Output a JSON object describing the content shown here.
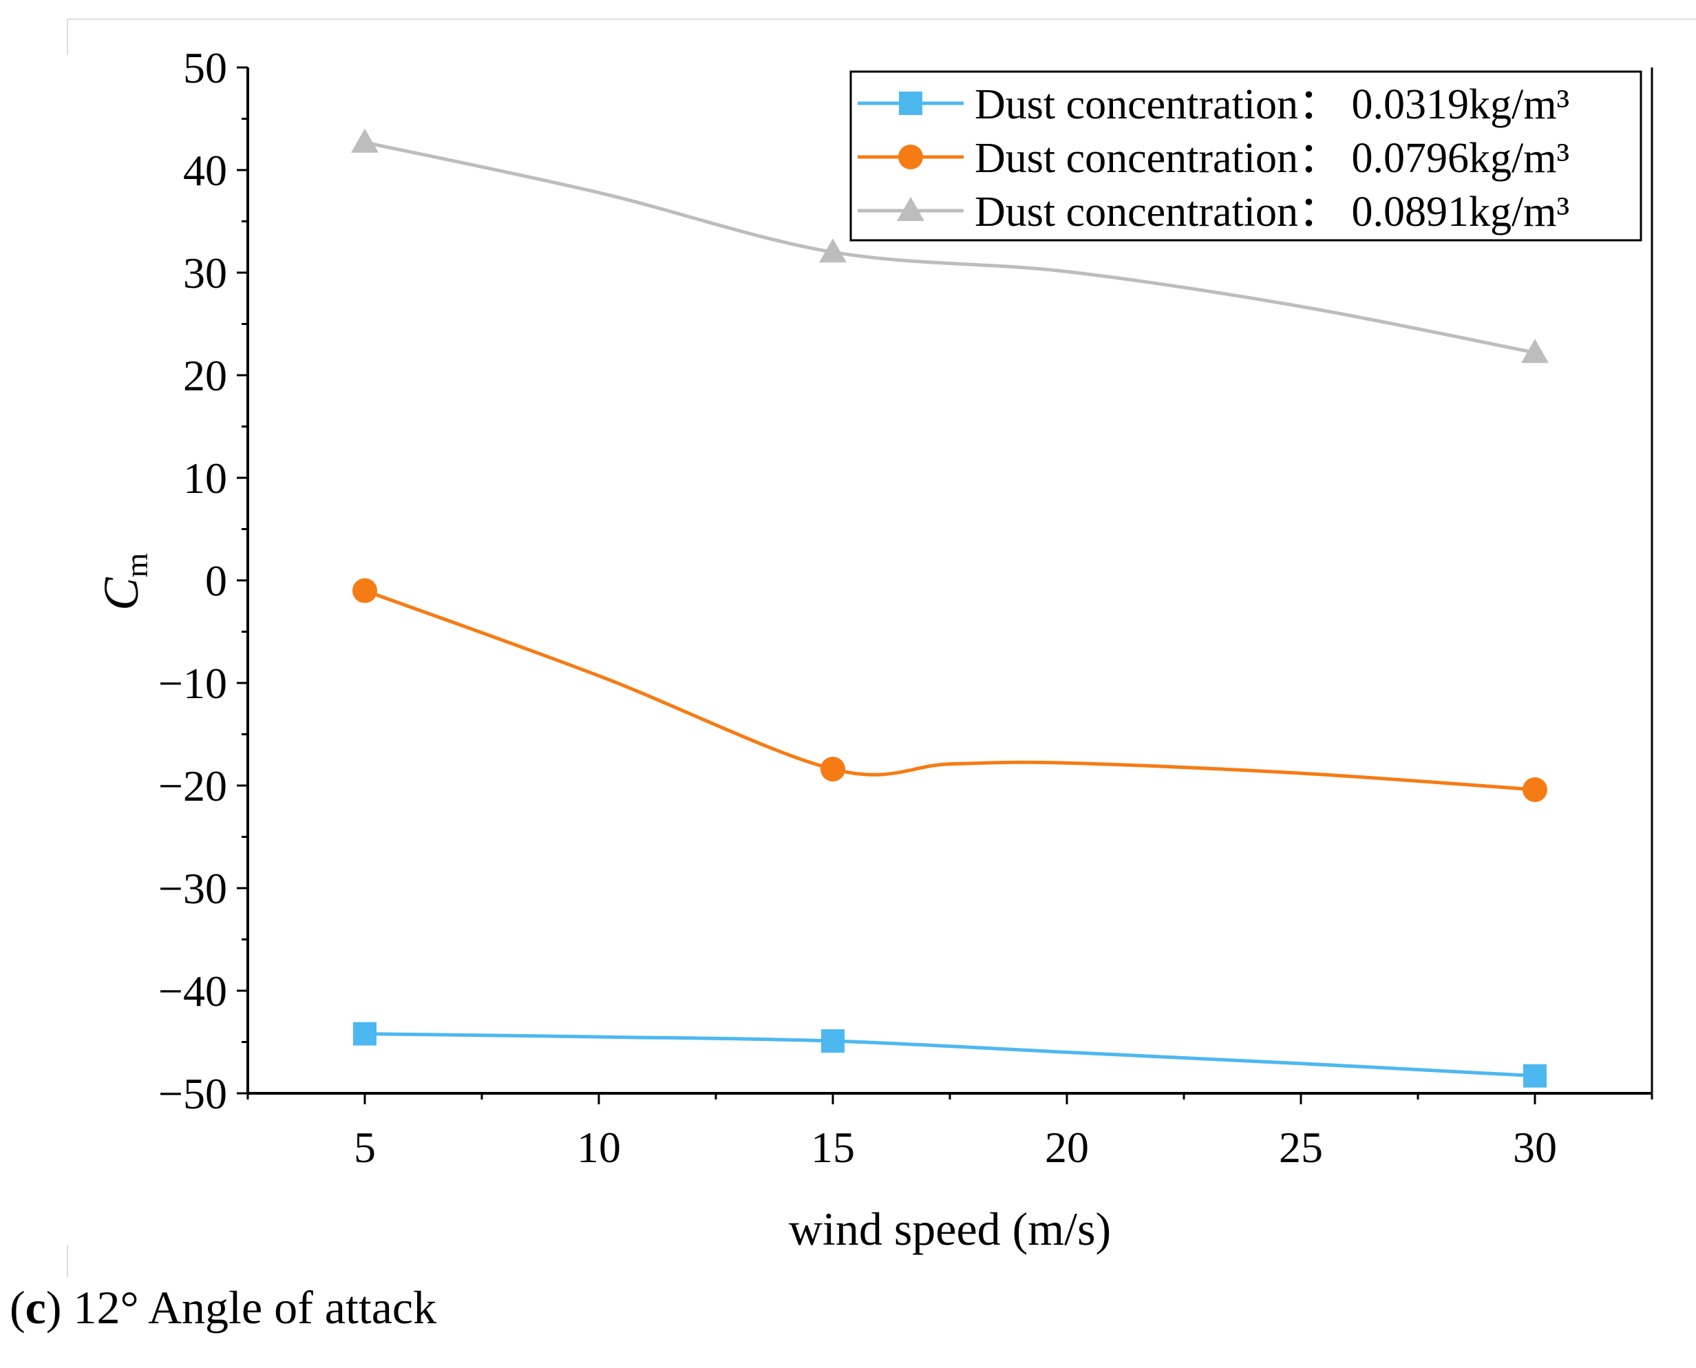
{
  "caption": {
    "letter": "c",
    "open": "(",
    "close": ")",
    "text": " 12° Angle of attack"
  },
  "chart_data": {
    "type": "line",
    "title": "",
    "xlabel": "wind speed (m/s)",
    "ylabel_main": "C",
    "ylabel_sub": "m",
    "xlim": [
      2.5,
      32.5
    ],
    "ylim": [
      -50,
      50
    ],
    "x_ticks": [
      5,
      10,
      15,
      20,
      25,
      30
    ],
    "y_ticks": [
      -50,
      -40,
      -30,
      -20,
      -10,
      0,
      10,
      20,
      30,
      40,
      50
    ],
    "y_tick_labels": [
      "−50",
      "−40",
      "−30",
      "−20",
      "−10",
      "0",
      "10",
      "20",
      "30",
      "40",
      "50"
    ],
    "grid": false,
    "legend_position": "top-right",
    "series": [
      {
        "name": "Dust concentration： 0.0319kg/m³",
        "marker": "square",
        "color": "#4db8f0",
        "x": [
          5,
          15,
          30
        ],
        "values": [
          -44.2,
          -44.9,
          -48.3
        ],
        "curve_x": [
          5,
          10,
          15,
          20,
          25,
          30
        ],
        "curve_y": [
          -44.2,
          -44.5,
          -44.9,
          -46.0,
          -47.1,
          -48.3
        ]
      },
      {
        "name": "Dust concentration： 0.0796kg/m³",
        "marker": "circle",
        "color": "#f57c14",
        "x": [
          5,
          15,
          30
        ],
        "values": [
          -1.0,
          -18.4,
          -20.4
        ],
        "curve_x": [
          5,
          10,
          15,
          17.5,
          20,
          25,
          30
        ],
        "curve_y": [
          -1.0,
          -9.3,
          -18.4,
          -17.9,
          -17.8,
          -18.8,
          -20.4
        ]
      },
      {
        "name": "Dust concentration： 0.0891kg/m³",
        "marker": "triangle",
        "color": "#bdbdbd",
        "x": [
          5,
          15,
          30
        ],
        "values": [
          42.7,
          32.0,
          22.2
        ],
        "curve_x": [
          5,
          10,
          15,
          20,
          25,
          30
        ],
        "curve_y": [
          42.7,
          37.8,
          32.0,
          30.1,
          26.7,
          22.2
        ]
      }
    ]
  }
}
